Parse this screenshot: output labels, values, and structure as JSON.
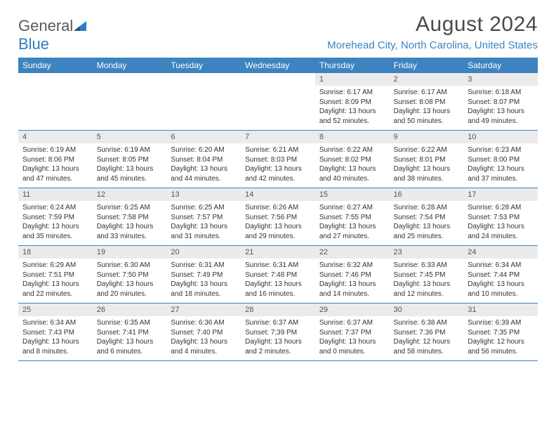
{
  "logo": {
    "text1": "General",
    "text2": "Blue"
  },
  "title": "August 2024",
  "location": "Morehead City, North Carolina, United States",
  "colors": {
    "header_bg": "#3d83bf",
    "header_text": "#ffffff",
    "daynum_bg": "#ebebeb",
    "border": "#3d83bf",
    "logo_gray": "#5a5a5a",
    "logo_blue": "#2f7dc0"
  },
  "day_names": [
    "Sunday",
    "Monday",
    "Tuesday",
    "Wednesday",
    "Thursday",
    "Friday",
    "Saturday"
  ],
  "weeks": [
    [
      {
        "n": "",
        "sr": "",
        "ss": "",
        "dl": ""
      },
      {
        "n": "",
        "sr": "",
        "ss": "",
        "dl": ""
      },
      {
        "n": "",
        "sr": "",
        "ss": "",
        "dl": ""
      },
      {
        "n": "",
        "sr": "",
        "ss": "",
        "dl": ""
      },
      {
        "n": "1",
        "sr": "Sunrise: 6:17 AM",
        "ss": "Sunset: 8:09 PM",
        "dl": "Daylight: 13 hours and 52 minutes."
      },
      {
        "n": "2",
        "sr": "Sunrise: 6:17 AM",
        "ss": "Sunset: 8:08 PM",
        "dl": "Daylight: 13 hours and 50 minutes."
      },
      {
        "n": "3",
        "sr": "Sunrise: 6:18 AM",
        "ss": "Sunset: 8:07 PM",
        "dl": "Daylight: 13 hours and 49 minutes."
      }
    ],
    [
      {
        "n": "4",
        "sr": "Sunrise: 6:19 AM",
        "ss": "Sunset: 8:06 PM",
        "dl": "Daylight: 13 hours and 47 minutes."
      },
      {
        "n": "5",
        "sr": "Sunrise: 6:19 AM",
        "ss": "Sunset: 8:05 PM",
        "dl": "Daylight: 13 hours and 45 minutes."
      },
      {
        "n": "6",
        "sr": "Sunrise: 6:20 AM",
        "ss": "Sunset: 8:04 PM",
        "dl": "Daylight: 13 hours and 44 minutes."
      },
      {
        "n": "7",
        "sr": "Sunrise: 6:21 AM",
        "ss": "Sunset: 8:03 PM",
        "dl": "Daylight: 13 hours and 42 minutes."
      },
      {
        "n": "8",
        "sr": "Sunrise: 6:22 AM",
        "ss": "Sunset: 8:02 PM",
        "dl": "Daylight: 13 hours and 40 minutes."
      },
      {
        "n": "9",
        "sr": "Sunrise: 6:22 AM",
        "ss": "Sunset: 8:01 PM",
        "dl": "Daylight: 13 hours and 38 minutes."
      },
      {
        "n": "10",
        "sr": "Sunrise: 6:23 AM",
        "ss": "Sunset: 8:00 PM",
        "dl": "Daylight: 13 hours and 37 minutes."
      }
    ],
    [
      {
        "n": "11",
        "sr": "Sunrise: 6:24 AM",
        "ss": "Sunset: 7:59 PM",
        "dl": "Daylight: 13 hours and 35 minutes."
      },
      {
        "n": "12",
        "sr": "Sunrise: 6:25 AM",
        "ss": "Sunset: 7:58 PM",
        "dl": "Daylight: 13 hours and 33 minutes."
      },
      {
        "n": "13",
        "sr": "Sunrise: 6:25 AM",
        "ss": "Sunset: 7:57 PM",
        "dl": "Daylight: 13 hours and 31 minutes."
      },
      {
        "n": "14",
        "sr": "Sunrise: 6:26 AM",
        "ss": "Sunset: 7:56 PM",
        "dl": "Daylight: 13 hours and 29 minutes."
      },
      {
        "n": "15",
        "sr": "Sunrise: 6:27 AM",
        "ss": "Sunset: 7:55 PM",
        "dl": "Daylight: 13 hours and 27 minutes."
      },
      {
        "n": "16",
        "sr": "Sunrise: 6:28 AM",
        "ss": "Sunset: 7:54 PM",
        "dl": "Daylight: 13 hours and 25 minutes."
      },
      {
        "n": "17",
        "sr": "Sunrise: 6:28 AM",
        "ss": "Sunset: 7:53 PM",
        "dl": "Daylight: 13 hours and 24 minutes."
      }
    ],
    [
      {
        "n": "18",
        "sr": "Sunrise: 6:29 AM",
        "ss": "Sunset: 7:51 PM",
        "dl": "Daylight: 13 hours and 22 minutes."
      },
      {
        "n": "19",
        "sr": "Sunrise: 6:30 AM",
        "ss": "Sunset: 7:50 PM",
        "dl": "Daylight: 13 hours and 20 minutes."
      },
      {
        "n": "20",
        "sr": "Sunrise: 6:31 AM",
        "ss": "Sunset: 7:49 PM",
        "dl": "Daylight: 13 hours and 18 minutes."
      },
      {
        "n": "21",
        "sr": "Sunrise: 6:31 AM",
        "ss": "Sunset: 7:48 PM",
        "dl": "Daylight: 13 hours and 16 minutes."
      },
      {
        "n": "22",
        "sr": "Sunrise: 6:32 AM",
        "ss": "Sunset: 7:46 PM",
        "dl": "Daylight: 13 hours and 14 minutes."
      },
      {
        "n": "23",
        "sr": "Sunrise: 6:33 AM",
        "ss": "Sunset: 7:45 PM",
        "dl": "Daylight: 13 hours and 12 minutes."
      },
      {
        "n": "24",
        "sr": "Sunrise: 6:34 AM",
        "ss": "Sunset: 7:44 PM",
        "dl": "Daylight: 13 hours and 10 minutes."
      }
    ],
    [
      {
        "n": "25",
        "sr": "Sunrise: 6:34 AM",
        "ss": "Sunset: 7:43 PM",
        "dl": "Daylight: 13 hours and 8 minutes."
      },
      {
        "n": "26",
        "sr": "Sunrise: 6:35 AM",
        "ss": "Sunset: 7:41 PM",
        "dl": "Daylight: 13 hours and 6 minutes."
      },
      {
        "n": "27",
        "sr": "Sunrise: 6:36 AM",
        "ss": "Sunset: 7:40 PM",
        "dl": "Daylight: 13 hours and 4 minutes."
      },
      {
        "n": "28",
        "sr": "Sunrise: 6:37 AM",
        "ss": "Sunset: 7:39 PM",
        "dl": "Daylight: 13 hours and 2 minutes."
      },
      {
        "n": "29",
        "sr": "Sunrise: 6:37 AM",
        "ss": "Sunset: 7:37 PM",
        "dl": "Daylight: 13 hours and 0 minutes."
      },
      {
        "n": "30",
        "sr": "Sunrise: 6:38 AM",
        "ss": "Sunset: 7:36 PM",
        "dl": "Daylight: 12 hours and 58 minutes."
      },
      {
        "n": "31",
        "sr": "Sunrise: 6:39 AM",
        "ss": "Sunset: 7:35 PM",
        "dl": "Daylight: 12 hours and 56 minutes."
      }
    ]
  ]
}
